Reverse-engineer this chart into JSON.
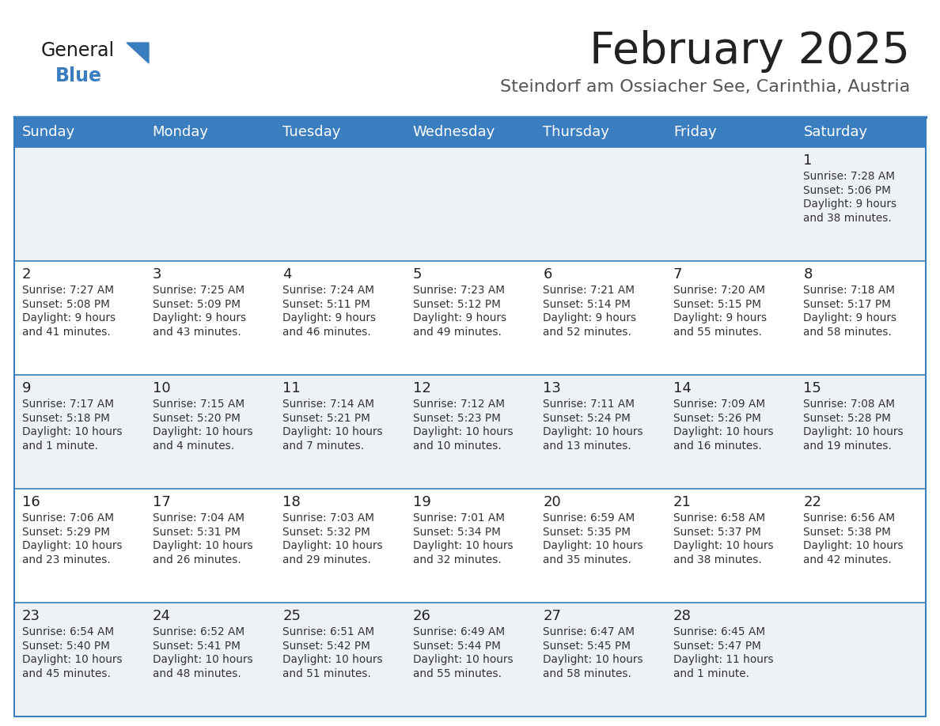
{
  "title": "February 2025",
  "subtitle": "Steindorf am Ossiacher See, Carinthia, Austria",
  "days_of_week": [
    "Sunday",
    "Monday",
    "Tuesday",
    "Wednesday",
    "Thursday",
    "Friday",
    "Saturday"
  ],
  "header_bg": "#3a7ebf",
  "header_text": "#ffffff",
  "row_bg_odd": "#eef2f7",
  "row_bg_even": "#ffffff",
  "cell_border_color": "#3a7ebf",
  "day_num_color": "#222222",
  "info_color": "#333333",
  "title_color": "#222222",
  "subtitle_color": "#555555",
  "logo_general_color": "#1a1a1a",
  "logo_blue_color": "#3a7ebf",
  "calendar_data": [
    [
      null,
      null,
      null,
      null,
      null,
      null,
      {
        "day": "1",
        "sunrise": "7:28 AM",
        "sunset": "5:06 PM",
        "daylight1": "9 hours",
        "daylight2": "and 38 minutes."
      }
    ],
    [
      {
        "day": "2",
        "sunrise": "7:27 AM",
        "sunset": "5:08 PM",
        "daylight1": "9 hours",
        "daylight2": "and 41 minutes."
      },
      {
        "day": "3",
        "sunrise": "7:25 AM",
        "sunset": "5:09 PM",
        "daylight1": "9 hours",
        "daylight2": "and 43 minutes."
      },
      {
        "day": "4",
        "sunrise": "7:24 AM",
        "sunset": "5:11 PM",
        "daylight1": "9 hours",
        "daylight2": "and 46 minutes."
      },
      {
        "day": "5",
        "sunrise": "7:23 AM",
        "sunset": "5:12 PM",
        "daylight1": "9 hours",
        "daylight2": "and 49 minutes."
      },
      {
        "day": "6",
        "sunrise": "7:21 AM",
        "sunset": "5:14 PM",
        "daylight1": "9 hours",
        "daylight2": "and 52 minutes."
      },
      {
        "day": "7",
        "sunrise": "7:20 AM",
        "sunset": "5:15 PM",
        "daylight1": "9 hours",
        "daylight2": "and 55 minutes."
      },
      {
        "day": "8",
        "sunrise": "7:18 AM",
        "sunset": "5:17 PM",
        "daylight1": "9 hours",
        "daylight2": "and 58 minutes."
      }
    ],
    [
      {
        "day": "9",
        "sunrise": "7:17 AM",
        "sunset": "5:18 PM",
        "daylight1": "10 hours",
        "daylight2": "and 1 minute."
      },
      {
        "day": "10",
        "sunrise": "7:15 AM",
        "sunset": "5:20 PM",
        "daylight1": "10 hours",
        "daylight2": "and 4 minutes."
      },
      {
        "day": "11",
        "sunrise": "7:14 AM",
        "sunset": "5:21 PM",
        "daylight1": "10 hours",
        "daylight2": "and 7 minutes."
      },
      {
        "day": "12",
        "sunrise": "7:12 AM",
        "sunset": "5:23 PM",
        "daylight1": "10 hours",
        "daylight2": "and 10 minutes."
      },
      {
        "day": "13",
        "sunrise": "7:11 AM",
        "sunset": "5:24 PM",
        "daylight1": "10 hours",
        "daylight2": "and 13 minutes."
      },
      {
        "day": "14",
        "sunrise": "7:09 AM",
        "sunset": "5:26 PM",
        "daylight1": "10 hours",
        "daylight2": "and 16 minutes."
      },
      {
        "day": "15",
        "sunrise": "7:08 AM",
        "sunset": "5:28 PM",
        "daylight1": "10 hours",
        "daylight2": "and 19 minutes."
      }
    ],
    [
      {
        "day": "16",
        "sunrise": "7:06 AM",
        "sunset": "5:29 PM",
        "daylight1": "10 hours",
        "daylight2": "and 23 minutes."
      },
      {
        "day": "17",
        "sunrise": "7:04 AM",
        "sunset": "5:31 PM",
        "daylight1": "10 hours",
        "daylight2": "and 26 minutes."
      },
      {
        "day": "18",
        "sunrise": "7:03 AM",
        "sunset": "5:32 PM",
        "daylight1": "10 hours",
        "daylight2": "and 29 minutes."
      },
      {
        "day": "19",
        "sunrise": "7:01 AM",
        "sunset": "5:34 PM",
        "daylight1": "10 hours",
        "daylight2": "and 32 minutes."
      },
      {
        "day": "20",
        "sunrise": "6:59 AM",
        "sunset": "5:35 PM",
        "daylight1": "10 hours",
        "daylight2": "and 35 minutes."
      },
      {
        "day": "21",
        "sunrise": "6:58 AM",
        "sunset": "5:37 PM",
        "daylight1": "10 hours",
        "daylight2": "and 38 minutes."
      },
      {
        "day": "22",
        "sunrise": "6:56 AM",
        "sunset": "5:38 PM",
        "daylight1": "10 hours",
        "daylight2": "and 42 minutes."
      }
    ],
    [
      {
        "day": "23",
        "sunrise": "6:54 AM",
        "sunset": "5:40 PM",
        "daylight1": "10 hours",
        "daylight2": "and 45 minutes."
      },
      {
        "day": "24",
        "sunrise": "6:52 AM",
        "sunset": "5:41 PM",
        "daylight1": "10 hours",
        "daylight2": "and 48 minutes."
      },
      {
        "day": "25",
        "sunrise": "6:51 AM",
        "sunset": "5:42 PM",
        "daylight1": "10 hours",
        "daylight2": "and 51 minutes."
      },
      {
        "day": "26",
        "sunrise": "6:49 AM",
        "sunset": "5:44 PM",
        "daylight1": "10 hours",
        "daylight2": "and 55 minutes."
      },
      {
        "day": "27",
        "sunrise": "6:47 AM",
        "sunset": "5:45 PM",
        "daylight1": "10 hours",
        "daylight2": "and 58 minutes."
      },
      {
        "day": "28",
        "sunrise": "6:45 AM",
        "sunset": "5:47 PM",
        "daylight1": "11 hours",
        "daylight2": "and 1 minute."
      },
      null
    ]
  ],
  "figsize": [
    11.88,
    9.18
  ],
  "dpi": 100
}
